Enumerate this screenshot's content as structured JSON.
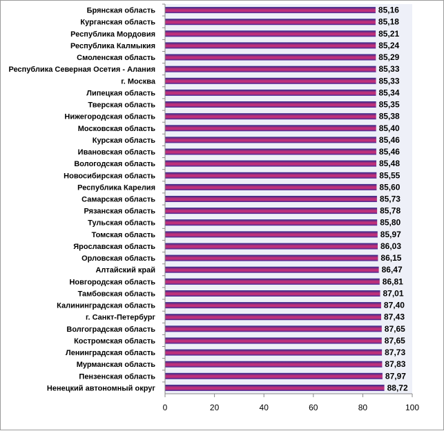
{
  "chart_data": {
    "type": "bar",
    "orientation": "horizontal",
    "title": "",
    "xlabel": "",
    "ylabel": "",
    "xlim": [
      0,
      100
    ],
    "xticks": [
      0,
      20,
      40,
      60,
      80,
      100
    ],
    "grid": false,
    "legend": "none",
    "categories": [
      "Брянская  область",
      "Курганская  область",
      "Республика  Мордовия",
      "Республика  Калмыкия",
      "Смоленская  область",
      "Республика  Северная Осетия - Алания",
      "г. Москва",
      "Липецкая  область",
      "Тверская  область",
      "Нижегородская область",
      "Московская  область",
      "Курская  область",
      "Ивановская  область",
      "Вологодская  область",
      "Новосибирская  область",
      "Республика  Карелия",
      "Самарская  область",
      "Рязанская  область",
      "Тульская  область",
      "Томская  область",
      "Ярославская  область",
      "Орловская  область",
      "Алтайский  край",
      "Новгородская  область",
      "Тамбовская  область",
      "Калининградская  область",
      "г. Санкт-Петербург",
      "Волгоградская  область",
      "Костромская  область",
      "Ленинградская  область",
      "Мурманская  область",
      "Пензенская  область",
      "Ненецкий  автономный  округ"
    ],
    "values": [
      85.16,
      85.18,
      85.21,
      85.24,
      85.29,
      85.33,
      85.33,
      85.34,
      85.35,
      85.38,
      85.4,
      85.46,
      85.46,
      85.48,
      85.55,
      85.6,
      85.73,
      85.78,
      85.8,
      85.97,
      86.03,
      86.15,
      86.47,
      86.81,
      87.01,
      87.4,
      87.43,
      87.65,
      87.65,
      87.73,
      87.83,
      87.97,
      88.72
    ],
    "value_labels": [
      "85,16",
      "85,18",
      "85,21",
      "85,24",
      "85,29",
      "85,33",
      "85,33",
      "85,34",
      "85,35",
      "85,38",
      "85,40",
      "85,46",
      "85,46",
      "85,48",
      "85,55",
      "85,60",
      "85,73",
      "85,78",
      "85,80",
      "85,97",
      "86,03",
      "86,15",
      "86,47",
      "86,81",
      "87,01",
      "87,40",
      "87,43",
      "87,65",
      "87,65",
      "87,73",
      "87,83",
      "87,97",
      "88,72"
    ],
    "colors": {
      "bar_top": "#2b2b8f",
      "bar_mid": "#c0307a",
      "bar_bottom": "#3a2a9a",
      "plot_background": "#eef0f8",
      "axis": "#868686"
    }
  }
}
